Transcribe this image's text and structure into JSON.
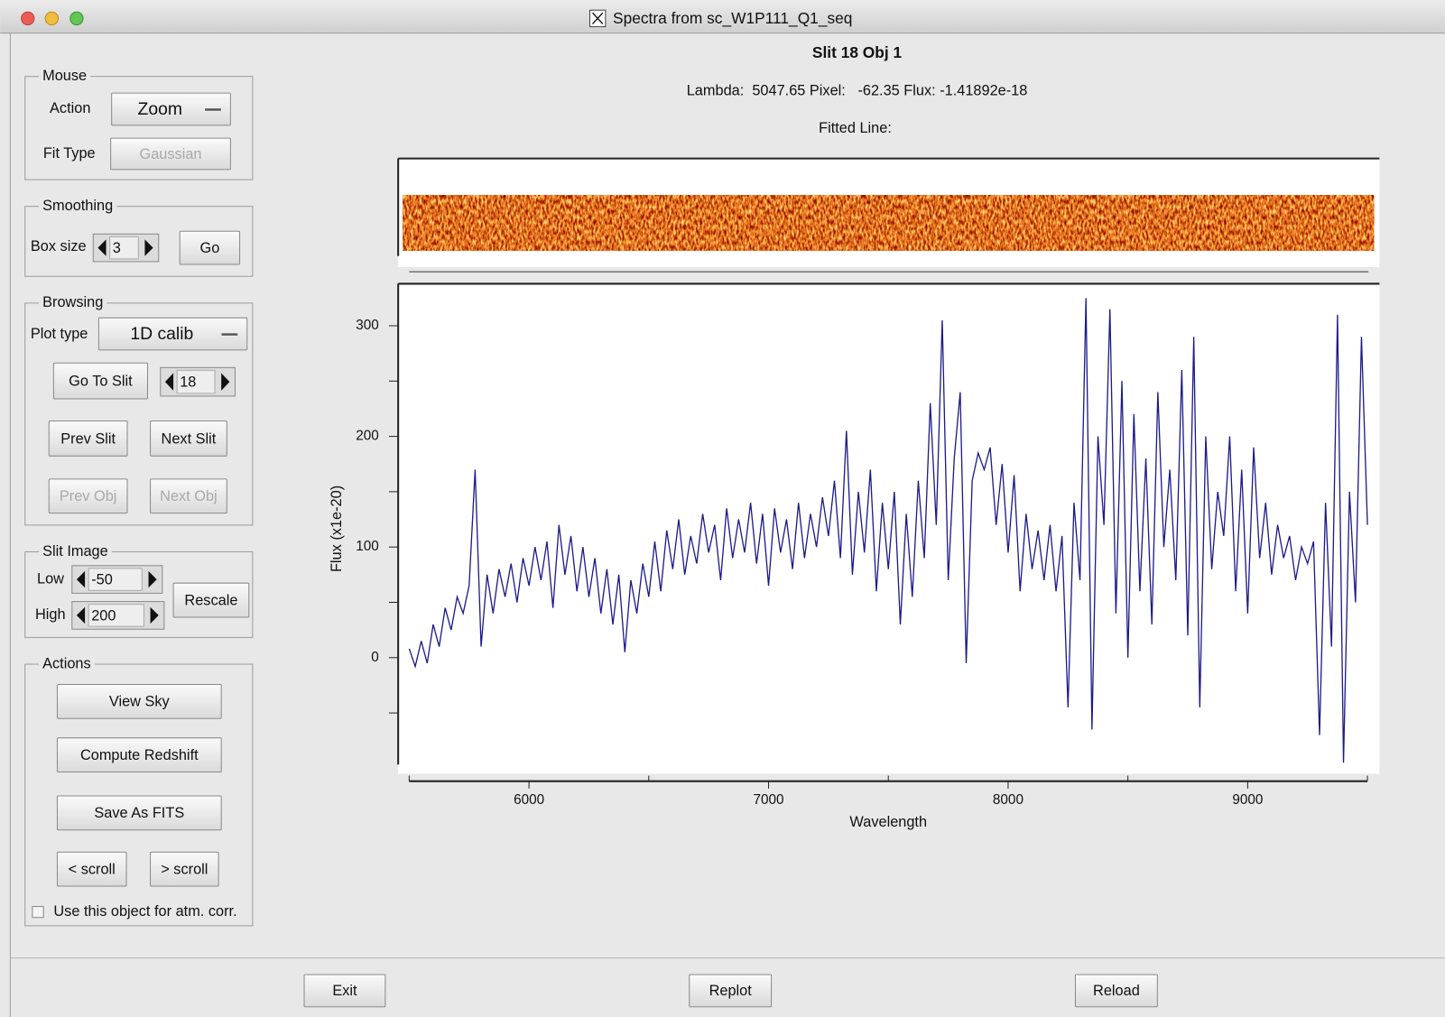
{
  "window": {
    "title": "Spectra from sc_W1P111_Q1_seq"
  },
  "panels": {
    "mouse": {
      "legend": "Mouse",
      "action_label": "Action",
      "action_value": "Zoom",
      "fit_type_label": "Fit Type",
      "fit_type_value": "Gaussian"
    },
    "smoothing": {
      "legend": "Smoothing",
      "box_size_label": "Box size",
      "box_size_value": "3",
      "go": "Go"
    },
    "browsing": {
      "legend": "Browsing",
      "plot_type_label": "Plot type",
      "plot_type_value": "1D calib",
      "go_to_slit": "Go To Slit",
      "slit_value": "18",
      "prev_slit": "Prev Slit",
      "next_slit": "Next Slit",
      "prev_obj": "Prev Obj",
      "next_obj": "Next Obj"
    },
    "slit_image": {
      "legend": "Slit Image",
      "low_label": "Low",
      "low_value": "-50",
      "high_label": "High",
      "high_value": "200",
      "rescale": "Rescale"
    },
    "actions": {
      "legend": "Actions",
      "view_sky": "View Sky",
      "compute_redshift": "Compute Redshift",
      "save_as_fits": "Save As FITS",
      "scroll_left": "< scroll",
      "scroll_right": "> scroll",
      "atm_corr": "Use this object for atm. corr."
    }
  },
  "header": {
    "title": "Slit 18 Obj 1",
    "status": "Lambda:  5047.65 Pixel:   -62.35 Flux: -1.41892e-18",
    "fitted_line": "Fitted Line:"
  },
  "footer": {
    "exit": "Exit",
    "replot": "Replot",
    "reload": "Reload"
  },
  "chart_data": {
    "type": "line",
    "x_label": "Wavelength",
    "y_label": "Flux (x1e-20)",
    "color": "#1c1c8a",
    "x": [
      5500,
      5525,
      5550,
      5575,
      5600,
      5625,
      5650,
      5675,
      5700,
      5725,
      5750,
      5775,
      5800,
      5825,
      5850,
      5875,
      5900,
      5925,
      5950,
      5975,
      6000,
      6025,
      6050,
      6075,
      6100,
      6125,
      6150,
      6175,
      6200,
      6225,
      6250,
      6275,
      6300,
      6325,
      6350,
      6375,
      6400,
      6425,
      6450,
      6475,
      6500,
      6525,
      6550,
      6575,
      6600,
      6625,
      6650,
      6675,
      6700,
      6725,
      6750,
      6775,
      6800,
      6825,
      6850,
      6875,
      6900,
      6925,
      6950,
      6975,
      7000,
      7025,
      7050,
      7075,
      7100,
      7125,
      7150,
      7175,
      7200,
      7225,
      7250,
      7275,
      7300,
      7325,
      7350,
      7375,
      7400,
      7425,
      7450,
      7475,
      7500,
      7525,
      7550,
      7575,
      7600,
      7625,
      7650,
      7675,
      7700,
      7725,
      7750,
      7775,
      7800,
      7825,
      7850,
      7875,
      7900,
      7925,
      7950,
      7975,
      8000,
      8025,
      8050,
      8075,
      8100,
      8125,
      8150,
      8175,
      8200,
      8225,
      8250,
      8275,
      8300,
      8325,
      8350,
      8375,
      8400,
      8425,
      8450,
      8475,
      8500,
      8525,
      8550,
      8575,
      8600,
      8625,
      8650,
      8675,
      8700,
      8725,
      8750,
      8775,
      8800,
      8825,
      8850,
      8875,
      8900,
      8925,
      8950,
      8975,
      9000,
      9025,
      9050,
      9075,
      9100,
      9125,
      9150,
      9175,
      9200,
      9225,
      9250,
      9275,
      9300,
      9325,
      9350,
      9375,
      9400,
      9425,
      9450,
      9475,
      9500
    ],
    "values": [
      8,
      -8,
      15,
      -5,
      30,
      10,
      45,
      25,
      55,
      40,
      65,
      170,
      10,
      75,
      40,
      80,
      55,
      85,
      50,
      90,
      65,
      100,
      70,
      105,
      45,
      120,
      75,
      110,
      60,
      100,
      55,
      90,
      40,
      80,
      30,
      75,
      5,
      70,
      40,
      85,
      55,
      105,
      60,
      115,
      80,
      125,
      75,
      110,
      85,
      130,
      95,
      120,
      70,
      135,
      90,
      125,
      95,
      140,
      85,
      130,
      65,
      135,
      95,
      125,
      80,
      140,
      90,
      130,
      100,
      145,
      110,
      160,
      90,
      205,
      75,
      150,
      95,
      170,
      60,
      140,
      80,
      150,
      30,
      130,
      55,
      160,
      90,
      230,
      120,
      305,
      70,
      180,
      240,
      -5,
      160,
      185,
      170,
      190,
      120,
      175,
      95,
      165,
      60,
      130,
      80,
      115,
      70,
      120,
      60,
      110,
      -45,
      140,
      70,
      325,
      -65,
      200,
      120,
      315,
      40,
      250,
      0,
      220,
      60,
      180,
      30,
      240,
      100,
      170,
      70,
      260,
      20,
      290,
      -45,
      200,
      80,
      150,
      110,
      200,
      60,
      170,
      40,
      190,
      90,
      140,
      75,
      120,
      90,
      110,
      70,
      100,
      85,
      105,
      -70,
      140,
      10,
      310,
      -95,
      150,
      50,
      290,
      120
    ],
    "xlim": [
      5454,
      9550
    ],
    "ylim": [
      -105,
      338
    ],
    "xticks": [
      6000,
      7000,
      8000,
      9000
    ],
    "xminor": [
      5500,
      6500,
      7500,
      8500,
      9500
    ],
    "yticks": [
      0,
      100,
      200,
      300
    ],
    "yminor": [
      -50,
      50,
      150,
      250
    ]
  }
}
